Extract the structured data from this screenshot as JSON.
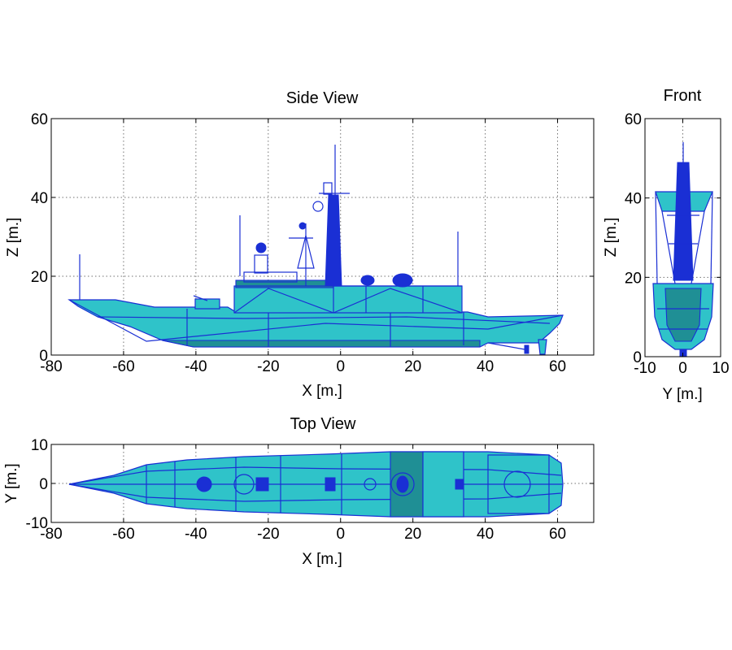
{
  "chart_data": [
    {
      "type": "other",
      "title": "Side View",
      "xlabel": "X [m.]",
      "ylabel": "Z [m.]",
      "xlim": [
        -80,
        70
      ],
      "ylim": [
        0,
        60
      ],
      "xticks": [
        -80,
        -60,
        -40,
        -20,
        0,
        20,
        40,
        60
      ],
      "yticks": [
        0,
        20,
        40,
        60
      ],
      "grid": true
    },
    {
      "type": "other",
      "title": "Front",
      "xlabel": "Y [m.]",
      "ylabel": "Z [m.]",
      "xlim": [
        -10,
        10
      ],
      "ylim": [
        0,
        60
      ],
      "xticks": [
        -10,
        0,
        10
      ],
      "yticks": [
        0,
        20,
        40,
        60
      ],
      "grid": true
    },
    {
      "type": "other",
      "title": "Top View",
      "xlabel": "X [m.]",
      "ylabel": "Y [m.]",
      "xlim": [
        -80,
        70
      ],
      "ylim": [
        -10,
        10
      ],
      "xticks": [
        -80,
        -60,
        -40,
        -20,
        0,
        20,
        40,
        60
      ],
      "yticks": [
        -10,
        0,
        10
      ],
      "grid": true
    }
  ],
  "colors": {
    "hull_fill": "#2fc3c9",
    "hull_edge": "#1a2fd4",
    "hull_shadow": "#1f8f95"
  }
}
